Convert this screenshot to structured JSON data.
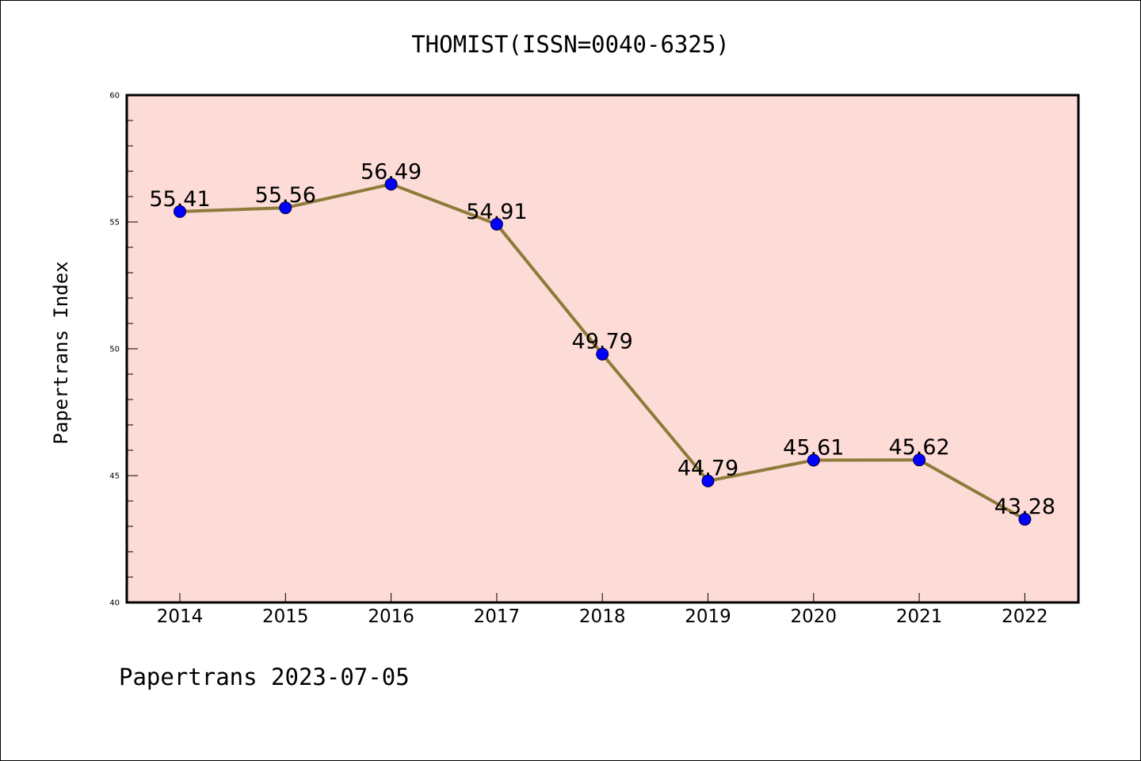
{
  "chart_data": {
    "type": "line",
    "title": "THOMIST(ISSN=0040-6325)",
    "xlabel": "",
    "ylabel": "Papertrans Index",
    "categories": [
      "2014",
      "2015",
      "2016",
      "2017",
      "2018",
      "2019",
      "2020",
      "2021",
      "2022"
    ],
    "series": [
      {
        "values": [
          55.41,
          55.56,
          56.49,
          54.91,
          49.79,
          44.79,
          45.61,
          45.62,
          43.28
        ]
      }
    ],
    "data_labels": [
      "55.41",
      "55.56",
      "56.49",
      "54.91",
      "49.79",
      "44.79",
      "45.61",
      "45.62",
      "43.28"
    ],
    "ylim": [
      40,
      60
    ],
    "y_ticks": [
      40,
      45,
      50,
      55,
      60
    ],
    "y_minor_step": 1,
    "grid": false,
    "legend": "none",
    "footer": "Papertrans 2023-07-05",
    "colors": {
      "line": "#8f7a3a",
      "marker": "#0000ff",
      "plot_background": "#fddcd8",
      "frame": "#000000",
      "page_border": "#000000"
    }
  }
}
